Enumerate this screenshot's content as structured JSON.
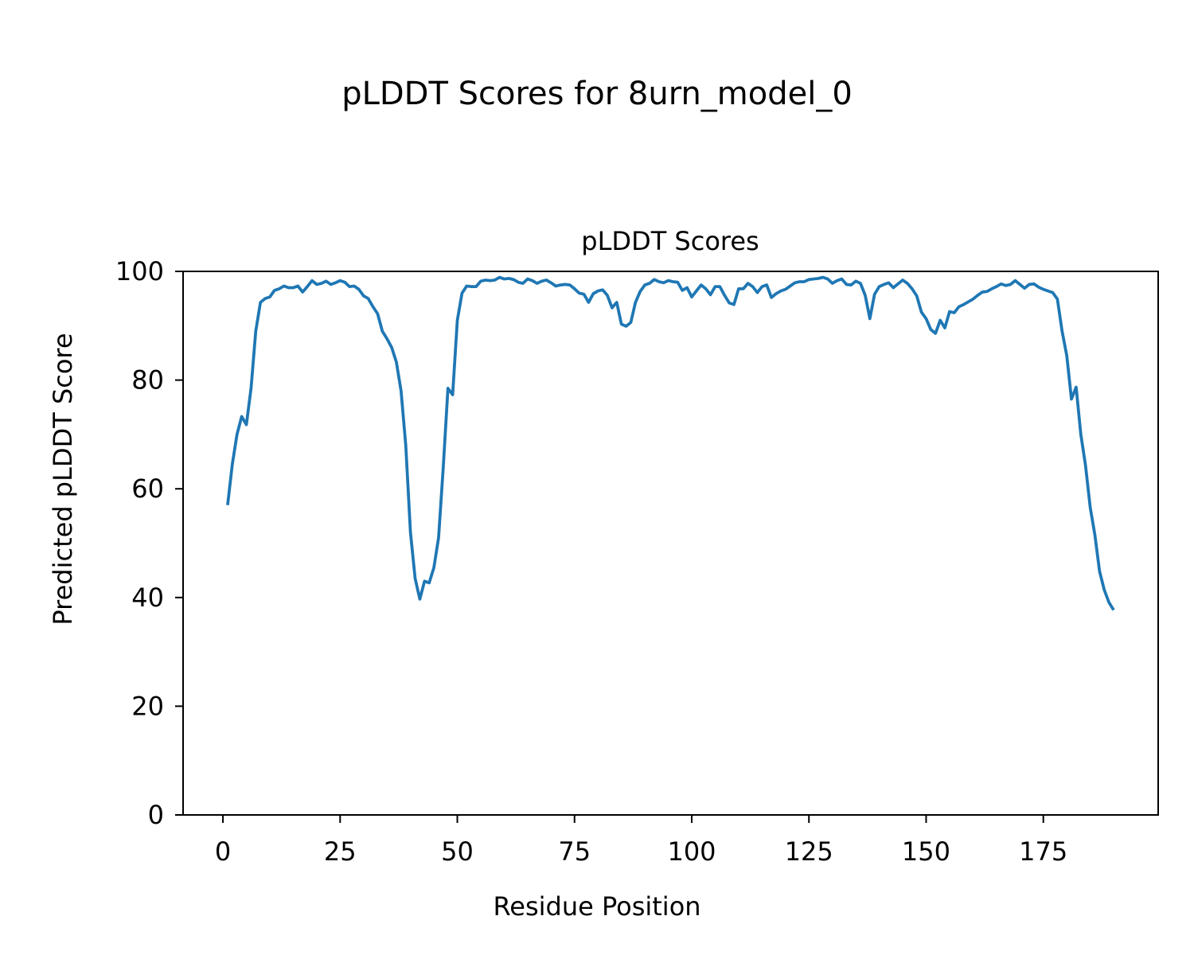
{
  "figure": {
    "suptitle": "pLDDT Scores for 8urn_model_0"
  },
  "chart_data": {
    "type": "line",
    "title": "pLDDT Scores",
    "xlabel": "Residue Position",
    "ylabel": "Predicted pLDDT Score",
    "xlim": [
      -8.5,
      199.5
    ],
    "ylim": [
      0,
      100
    ],
    "xticks": [
      0,
      25,
      50,
      75,
      100,
      125,
      150,
      175
    ],
    "yticks": [
      0,
      20,
      40,
      60,
      80,
      100
    ],
    "grid": false,
    "line_color": "#1f77b4",
    "series": [
      {
        "x_start": 1,
        "x_step": 1,
        "values": [
          57.0,
          64.5,
          70.0,
          73.3,
          71.8,
          78.5,
          89.0,
          94.3,
          95.0,
          95.3,
          96.5,
          96.8,
          97.3,
          97.0,
          97.0,
          97.3,
          96.2,
          97.2,
          98.3,
          97.6,
          97.8,
          98.2,
          97.6,
          97.9,
          98.3,
          98.0,
          97.2,
          97.3,
          96.7,
          95.5,
          95.0,
          93.5,
          92.2,
          89.0,
          87.6,
          86.0,
          83.3,
          78.0,
          68.0,
          52.0,
          43.5,
          39.7,
          43.0,
          42.7,
          45.5,
          51.0,
          64.0,
          78.5,
          77.3,
          91.0,
          96.0,
          97.3,
          97.2,
          97.2,
          98.2,
          98.4,
          98.3,
          98.4,
          98.9,
          98.6,
          98.7,
          98.5,
          98.0,
          97.8,
          98.6,
          98.3,
          97.8,
          98.2,
          98.4,
          97.9,
          97.3,
          97.5,
          97.6,
          97.5,
          96.8,
          96.0,
          95.8,
          94.3,
          95.9,
          96.4,
          96.6,
          95.6,
          93.3,
          94.3,
          90.3,
          89.9,
          90.6,
          94.3,
          96.3,
          97.5,
          97.8,
          98.5,
          98.1,
          97.9,
          98.3,
          98.1,
          98.0,
          96.5,
          97.0,
          95.3,
          96.4,
          97.5,
          96.8,
          95.7,
          97.2,
          97.2,
          95.6,
          94.2,
          93.9,
          96.8,
          96.8,
          97.8,
          97.2,
          96.1,
          97.2,
          97.5,
          95.2,
          95.9,
          96.4,
          96.7,
          97.3,
          97.9,
          98.1,
          98.1,
          98.5,
          98.6,
          98.7,
          98.9,
          98.6,
          97.8,
          98.3,
          98.6,
          97.6,
          97.5,
          98.2,
          97.8,
          95.6,
          91.3,
          95.8,
          97.2,
          97.6,
          97.9,
          97.0,
          97.7,
          98.4,
          97.8,
          96.8,
          95.5,
          92.5,
          91.3,
          89.3,
          88.6,
          91.0,
          89.6,
          92.6,
          92.4,
          93.5,
          93.9,
          94.4,
          94.9,
          95.6,
          96.2,
          96.3,
          96.8,
          97.2,
          97.7,
          97.4,
          97.6,
          98.3,
          97.6,
          96.9,
          97.6,
          97.7,
          97.1,
          96.7,
          96.4,
          96.1,
          94.9,
          89.0,
          84.5,
          76.5,
          78.7,
          70.0,
          64.3,
          56.6,
          51.5,
          44.8,
          41.4,
          39.1,
          37.7
        ]
      }
    ]
  }
}
